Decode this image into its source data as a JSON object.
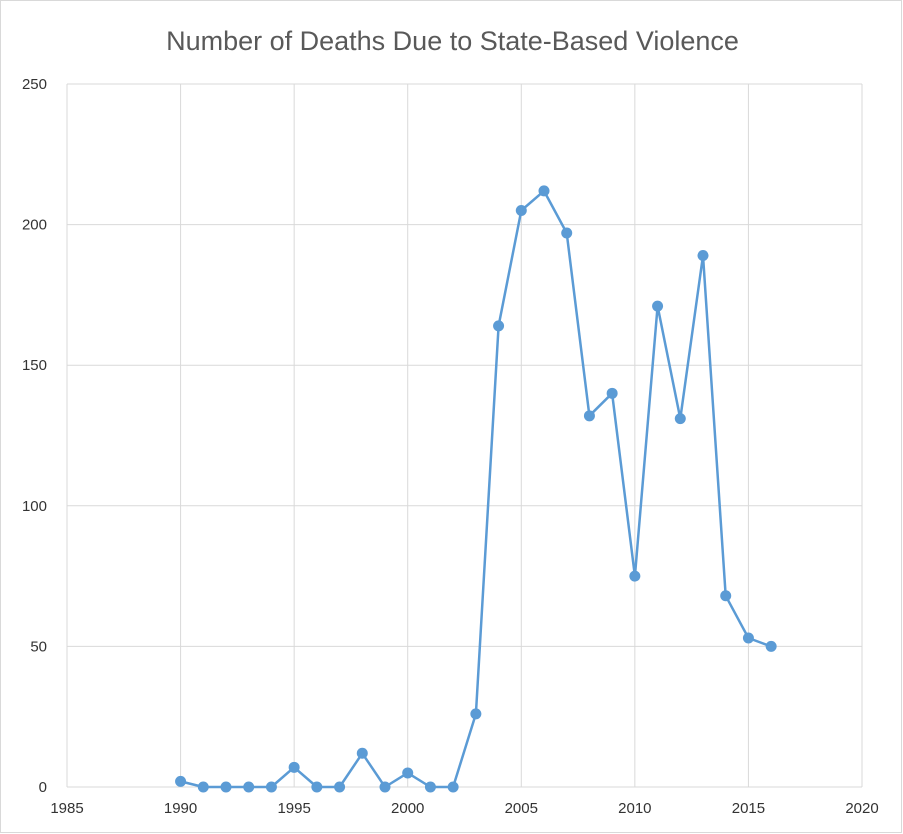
{
  "chart_data": {
    "type": "scatter",
    "mode": "lines+markers",
    "title": "Number of Deaths Due to State-Based Violence",
    "xlabel": "",
    "ylabel": "",
    "xlim": [
      1985,
      2020
    ],
    "ylim": [
      0,
      250
    ],
    "xticks": [
      "1985",
      "1990",
      "1995",
      "2000",
      "2005",
      "2010",
      "2015",
      "2020"
    ],
    "yticks": [
      "0",
      "50",
      "100",
      "150",
      "200",
      "250"
    ],
    "grid": true,
    "legend": "none",
    "series": [
      {
        "color": "#5b9bd5",
        "x": [
          1990,
          1991,
          1992,
          1993,
          1994,
          1995,
          1996,
          1997,
          1998,
          1999,
          2000,
          2001,
          2002,
          2003,
          2004,
          2005,
          2006,
          2007,
          2008,
          2009,
          2010,
          2011,
          2012,
          2013,
          2014,
          2015,
          2016
        ],
        "y": [
          2,
          0,
          0,
          0,
          0,
          7,
          0,
          0,
          12,
          0,
          5,
          0,
          0,
          26,
          164,
          205,
          212,
          197,
          132,
          140,
          75,
          171,
          131,
          189,
          68,
          53,
          50
        ]
      }
    ]
  }
}
